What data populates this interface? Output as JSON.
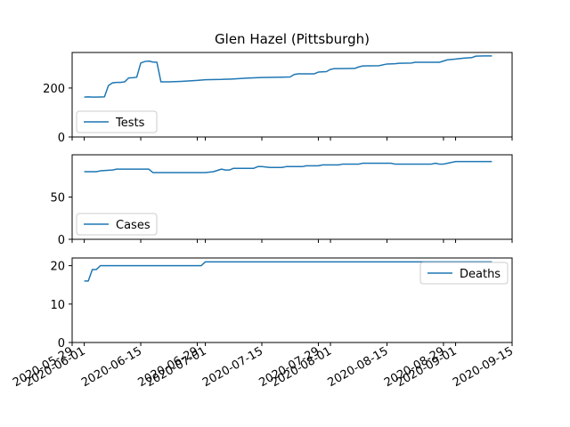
{
  "chart_data": {
    "type": "line",
    "title": "Glen Hazel (Pittsburgh)",
    "line_color": "#1f77b4",
    "x_tick_labels": [
      "2020-05-29",
      "2020-06-01",
      "2020-06-15",
      "2020-06-29",
      "2020-07-01",
      "2020-07-15",
      "2020-07-29",
      "2020-08-01",
      "2020-08-15",
      "2020-08-29",
      "2020-09-01",
      "2020-09-15"
    ],
    "xlim": [
      "2020-05-29",
      "2020-09-15"
    ],
    "panels": [
      {
        "name": "Tests",
        "legend_position": "lower-left",
        "ylim": [
          0,
          345
        ],
        "y_ticks": [
          0,
          200
        ],
        "points": [
          [
            "2020-06-01",
            163
          ],
          [
            "2020-06-02",
            164
          ],
          [
            "2020-06-03",
            163
          ],
          [
            "2020-06-04",
            163
          ],
          [
            "2020-06-06",
            164
          ],
          [
            "2020-06-07",
            210
          ],
          [
            "2020-06-08",
            221
          ],
          [
            "2020-06-09",
            223
          ],
          [
            "2020-06-10",
            223
          ],
          [
            "2020-06-11",
            225
          ],
          [
            "2020-06-12",
            241
          ],
          [
            "2020-06-13",
            242
          ],
          [
            "2020-06-14",
            244
          ],
          [
            "2020-06-15",
            302
          ],
          [
            "2020-06-16",
            308
          ],
          [
            "2020-06-17",
            310
          ],
          [
            "2020-06-18",
            306
          ],
          [
            "2020-06-19",
            305
          ],
          [
            "2020-06-20",
            225
          ],
          [
            "2020-06-22",
            225
          ],
          [
            "2020-06-25",
            227
          ],
          [
            "2020-06-29",
            231
          ],
          [
            "2020-07-01",
            234
          ],
          [
            "2020-07-05",
            235
          ],
          [
            "2020-07-08",
            237
          ],
          [
            "2020-07-11",
            240
          ],
          [
            "2020-07-15",
            243
          ],
          [
            "2020-07-20",
            244
          ],
          [
            "2020-07-22",
            245
          ],
          [
            "2020-07-23",
            255
          ],
          [
            "2020-07-24",
            258
          ],
          [
            "2020-07-28",
            258
          ],
          [
            "2020-07-29",
            265
          ],
          [
            "2020-07-31",
            267
          ],
          [
            "2020-08-01",
            276
          ],
          [
            "2020-08-02",
            279
          ],
          [
            "2020-08-07",
            280
          ],
          [
            "2020-08-08",
            286
          ],
          [
            "2020-08-09",
            290
          ],
          [
            "2020-08-13",
            291
          ],
          [
            "2020-08-15",
            298
          ],
          [
            "2020-08-17",
            299
          ],
          [
            "2020-08-18",
            301
          ],
          [
            "2020-08-21",
            302
          ],
          [
            "2020-08-22",
            305
          ],
          [
            "2020-08-28",
            305
          ],
          [
            "2020-08-29",
            310
          ],
          [
            "2020-08-30",
            315
          ],
          [
            "2020-09-01",
            318
          ],
          [
            "2020-09-03",
            322
          ],
          [
            "2020-09-05",
            324
          ],
          [
            "2020-09-06",
            330
          ],
          [
            "2020-09-08",
            331
          ],
          [
            "2020-09-10",
            331
          ]
        ]
      },
      {
        "name": "Cases",
        "legend_position": "lower-left",
        "ylim": [
          0,
          100
        ],
        "y_ticks": [
          0,
          50
        ],
        "points": [
          [
            "2020-06-01",
            80
          ],
          [
            "2020-06-04",
            80
          ],
          [
            "2020-06-05",
            81
          ],
          [
            "2020-06-08",
            82
          ],
          [
            "2020-06-09",
            83
          ],
          [
            "2020-06-15",
            83
          ],
          [
            "2020-06-16",
            83
          ],
          [
            "2020-06-17",
            83
          ],
          [
            "2020-06-18",
            79
          ],
          [
            "2020-06-19",
            79
          ],
          [
            "2020-07-01",
            79
          ],
          [
            "2020-07-03",
            80
          ],
          [
            "2020-07-05",
            83
          ],
          [
            "2020-07-06",
            82
          ],
          [
            "2020-07-07",
            82
          ],
          [
            "2020-07-08",
            84
          ],
          [
            "2020-07-12",
            84
          ],
          [
            "2020-07-13",
            84
          ],
          [
            "2020-07-14",
            86
          ],
          [
            "2020-07-15",
            86
          ],
          [
            "2020-07-17",
            85
          ],
          [
            "2020-07-20",
            85
          ],
          [
            "2020-07-21",
            86
          ],
          [
            "2020-07-25",
            86
          ],
          [
            "2020-07-26",
            87
          ],
          [
            "2020-07-29",
            87
          ],
          [
            "2020-07-30",
            88
          ],
          [
            "2020-08-03",
            88
          ],
          [
            "2020-08-04",
            89
          ],
          [
            "2020-08-08",
            89
          ],
          [
            "2020-08-09",
            90
          ],
          [
            "2020-08-12",
            90
          ],
          [
            "2020-08-14",
            90
          ],
          [
            "2020-08-16",
            90
          ],
          [
            "2020-08-17",
            89
          ],
          [
            "2020-08-26",
            89
          ],
          [
            "2020-08-27",
            90
          ],
          [
            "2020-08-28",
            89
          ],
          [
            "2020-08-29",
            89
          ],
          [
            "2020-08-30",
            90
          ],
          [
            "2020-09-01",
            92
          ],
          [
            "2020-09-10",
            92
          ]
        ]
      },
      {
        "name": "Deaths",
        "legend_position": "upper-right",
        "ylim": [
          0,
          22
        ],
        "y_ticks": [
          0,
          10,
          20
        ],
        "points": [
          [
            "2020-06-01",
            16
          ],
          [
            "2020-06-02",
            16
          ],
          [
            "2020-06-03",
            19
          ],
          [
            "2020-06-04",
            19
          ],
          [
            "2020-06-05",
            20
          ],
          [
            "2020-06-30",
            20
          ],
          [
            "2020-07-01",
            21
          ],
          [
            "2020-09-10",
            21
          ]
        ]
      }
    ]
  }
}
